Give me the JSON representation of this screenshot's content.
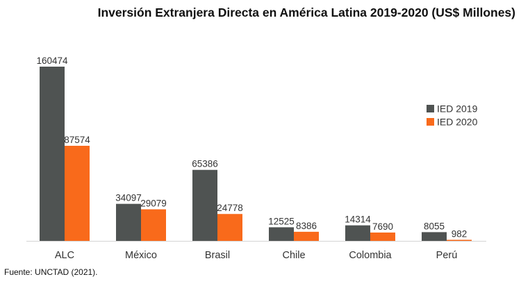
{
  "chart_data": {
    "type": "bar",
    "title": "Inversión Extranjera Directa en América Latina 2019-2020 (US$ Millones)",
    "categories": [
      "ALC",
      "México",
      "Brasil",
      "Chile",
      "Colombia",
      "Perú"
    ],
    "series": [
      {
        "name": "IED 2019",
        "color": "#4f5352",
        "values": [
          160474,
          34097,
          65386,
          12525,
          14314,
          8055
        ]
      },
      {
        "name": "IED 2020",
        "color": "#f96a1b",
        "values": [
          87574,
          29079,
          24778,
          8386,
          7690,
          982
        ]
      }
    ],
    "xlabel": "",
    "ylabel": "",
    "ylim": [
      0,
      160474
    ],
    "grid": false,
    "legend": "right",
    "source": "Fuente: UNCTAD (2021)."
  }
}
